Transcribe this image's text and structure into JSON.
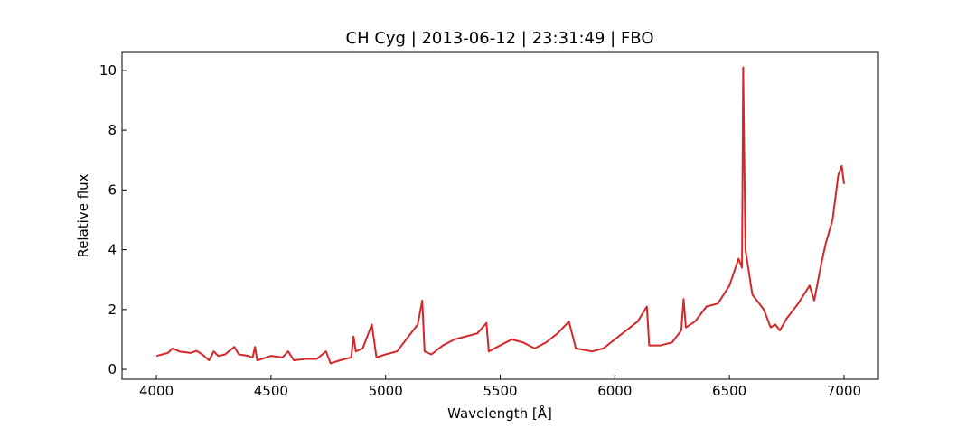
{
  "chart_data": {
    "type": "line",
    "title": "CH Cyg | 2013-06-12 | 23:31:49 | FBO",
    "x_label": "Wavelength [Å]",
    "y_label": "Relative flux",
    "xlim": [
      3850,
      7150
    ],
    "ylim": [
      -0.33,
      10.6
    ],
    "xticks": [
      4000,
      4500,
      5000,
      5500,
      6000,
      6500,
      7000
    ],
    "yticks": [
      0,
      2,
      4,
      6,
      8,
      10
    ],
    "series": [
      {
        "color": "#d62728",
        "x": [
          4000,
          4050,
          4070,
          4100,
          4150,
          4175,
          4200,
          4230,
          4250,
          4270,
          4300,
          4340,
          4360,
          4400,
          4420,
          4430,
          4440,
          4500,
          4550,
          4575,
          4600,
          4650,
          4700,
          4740,
          4760,
          4800,
          4850,
          4860,
          4870,
          4900,
          4940,
          4960,
          5000,
          5050,
          5100,
          5140,
          5160,
          5170,
          5200,
          5250,
          5300,
          5350,
          5400,
          5440,
          5450,
          5500,
          5550,
          5600,
          5650,
          5700,
          5750,
          5800,
          5830,
          5900,
          5950,
          6000,
          6050,
          6100,
          6140,
          6150,
          6200,
          6250,
          6290,
          6300,
          6310,
          6350,
          6400,
          6450,
          6500,
          6540,
          6555,
          6560,
          6570,
          6600,
          6650,
          6680,
          6700,
          6720,
          6750,
          6800,
          6850,
          6870,
          6900,
          6920,
          6950,
          6975,
          6990,
          7000
        ],
        "values": [
          0.45,
          0.55,
          0.7,
          0.6,
          0.55,
          0.62,
          0.5,
          0.3,
          0.6,
          0.45,
          0.5,
          0.75,
          0.5,
          0.45,
          0.4,
          0.75,
          0.3,
          0.45,
          0.4,
          0.6,
          0.3,
          0.35,
          0.35,
          0.6,
          0.2,
          0.3,
          0.4,
          1.1,
          0.6,
          0.7,
          1.5,
          0.4,
          0.5,
          0.6,
          1.1,
          1.5,
          2.3,
          0.6,
          0.5,
          0.8,
          1.0,
          1.1,
          1.2,
          1.55,
          0.6,
          0.8,
          1.0,
          0.9,
          0.7,
          0.9,
          1.2,
          1.6,
          0.7,
          0.6,
          0.7,
          1.0,
          1.3,
          1.6,
          2.1,
          0.8,
          0.8,
          0.9,
          1.3,
          2.35,
          1.4,
          1.6,
          2.1,
          2.2,
          2.8,
          3.7,
          3.4,
          10.1,
          4.0,
          2.5,
          2.0,
          1.4,
          1.5,
          1.3,
          1.7,
          2.2,
          2.8,
          2.3,
          3.5,
          4.2,
          5.0,
          6.5,
          6.8,
          6.2
        ]
      }
    ]
  }
}
